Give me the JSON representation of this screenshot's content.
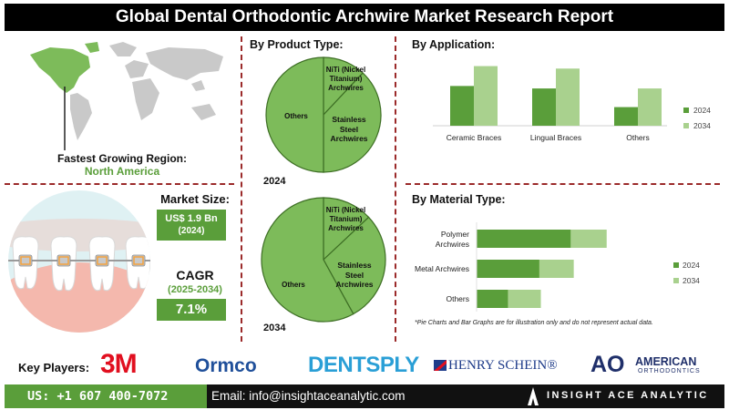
{
  "title": "Global Dental Orthodontic Archwire Market Research Report",
  "region": {
    "label": "Fastest Growing Region:",
    "value": "North America"
  },
  "market_size": {
    "label": "Market Size:",
    "value": "US$ 1.9 Bn",
    "year": "(2024)"
  },
  "cagr": {
    "label": "CAGR",
    "period": "(2025-2034)",
    "value": "7.1%"
  },
  "product_type": {
    "heading": "By Product Type:"
  },
  "application": {
    "heading": "By Application:"
  },
  "material": {
    "heading": "By Material Type:"
  },
  "footnote": "*Pie Charts and Bar Graphs are for illustration only and do not represent actual data.",
  "key_players": {
    "label": "Key Players:",
    "logos": [
      "3M",
      "Ormco",
      "DENTSPLY",
      "HENRY SCHEIN®",
      "AO",
      "AMERICAN",
      "ORTHODONTICS"
    ]
  },
  "contact": {
    "phone": "US: +1 607 400-7072",
    "email": "Email: info@insightaceanalytic.com",
    "brand": "INSIGHT ACE ANALYTIC"
  },
  "colors": {
    "green_dark": "#5a9e3a",
    "green_light": "#a9d18e",
    "pie": "#7dbb5a"
  },
  "chart_data": [
    {
      "type": "pie",
      "title": "2024",
      "categories": [
        "NiTi (Nickel Titanium) Archwires",
        "Stainless Steel Archwires",
        "Others"
      ],
      "values": [
        12,
        38,
        50
      ]
    },
    {
      "type": "pie",
      "title": "2034",
      "categories": [
        "NiTi (Nickel Titanium) Archwires",
        "Stainless Steel Archwires",
        "Others"
      ],
      "values": [
        13,
        29,
        58
      ]
    },
    {
      "type": "bar",
      "orientation": "vertical",
      "categories": [
        "Ceramic Braces",
        "Lingual Braces",
        "Others"
      ],
      "series": [
        {
          "name": "2024",
          "values": [
            32,
            30,
            15
          ]
        },
        {
          "name": "2034",
          "values": [
            48,
            46,
            30
          ]
        }
      ],
      "ylim": [
        0,
        55
      ],
      "legend": "right"
    },
    {
      "type": "bar",
      "orientation": "horizontal-stacked",
      "categories": [
        "Polymer Archwires",
        "Metal Archwires",
        "Others"
      ],
      "series": [
        {
          "name": "2024",
          "values": [
            60,
            40,
            20
          ]
        },
        {
          "name": "2034",
          "values": [
            83,
            62,
            41
          ]
        }
      ],
      "legend": "right"
    }
  ]
}
